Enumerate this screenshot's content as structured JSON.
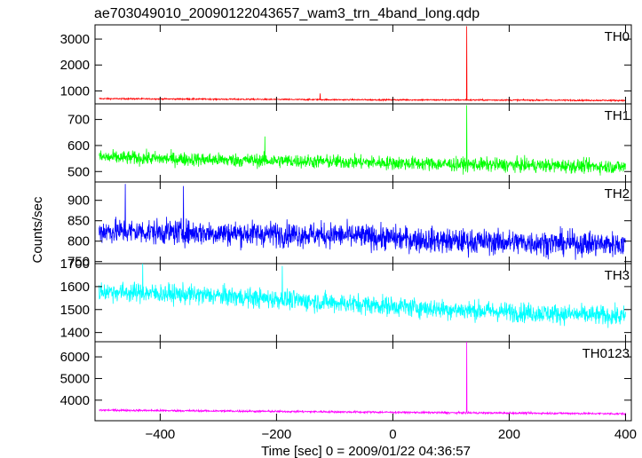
{
  "title": "ae703049010_20090122043657_wam3_trn_4band_long.qdp",
  "xlabel": "Time [sec] 0 = 2009/01/22 04:36:57",
  "ylabel": "Counts/sec",
  "chart_data": {
    "type": "line",
    "x_range": [
      -512,
      410
    ],
    "x_ticks": [
      -400,
      -200,
      0,
      200,
      400
    ],
    "x_tick_labels": [
      "−400",
      "−200",
      "0",
      "200",
      "400"
    ],
    "panels": [
      {
        "name": "TH0",
        "color": "#ff0000",
        "ylim": [
          500,
          3550
        ],
        "yticks": [
          1000,
          2000,
          3000
        ],
        "ytick_labels": [
          "1000",
          "2000",
          "3000"
        ],
        "baseline": [
          [
            -505,
            700
          ],
          [
            -300,
            680
          ],
          [
            -100,
            660
          ],
          [
            100,
            650
          ],
          [
            300,
            640
          ],
          [
            400,
            630
          ]
        ],
        "noise": 25,
        "spikes": [
          [
            -125,
            900
          ],
          [
            127,
            3500
          ]
        ]
      },
      {
        "name": "TH1",
        "color": "#00ff00",
        "ylim": [
          460,
          760
        ],
        "yticks": [
          500,
          600,
          700
        ],
        "ytick_labels": [
          "500",
          "600",
          "700"
        ],
        "baseline": [
          [
            -505,
            555
          ],
          [
            -300,
            545
          ],
          [
            -100,
            538
          ],
          [
            100,
            528
          ],
          [
            300,
            522
          ],
          [
            400,
            518
          ]
        ],
        "noise": 26,
        "spikes": [
          [
            -220,
            635
          ],
          [
            127,
            755
          ]
        ]
      },
      {
        "name": "TH2",
        "color": "#0000ff",
        "ylim": [
          745,
          945
        ],
        "yticks": [
          750,
          800,
          850,
          900
        ],
        "ytick_labels": [
          "750",
          "800",
          "850",
          "900"
        ],
        "baseline": [
          [
            -505,
            825
          ],
          [
            -300,
            820
          ],
          [
            -100,
            815
          ],
          [
            100,
            800
          ],
          [
            300,
            795
          ],
          [
            400,
            792
          ]
        ],
        "noise": 30,
        "spikes": [
          [
            -460,
            940
          ],
          [
            -360,
            935
          ]
        ]
      },
      {
        "name": "TH3",
        "color": "#00ffff",
        "ylim": [
          1360,
          1700
        ],
        "yticks": [
          1400,
          1500,
          1600,
          1700
        ],
        "ytick_labels": [
          "1400",
          "1500",
          "1600",
          "1700"
        ],
        "baseline": [
          [
            -505,
            1580
          ],
          [
            -300,
            1560
          ],
          [
            -100,
            1530
          ],
          [
            100,
            1500
          ],
          [
            300,
            1480
          ],
          [
            400,
            1470
          ]
        ],
        "noise": 42,
        "spikes": [
          [
            -430,
            1700
          ],
          [
            -190,
            1690
          ]
        ]
      },
      {
        "name": "TH0123",
        "color": "#ff00ff",
        "ylim": [
          3050,
          6700
        ],
        "yticks": [
          4000,
          5000,
          6000
        ],
        "ytick_labels": [
          "4000",
          "5000",
          "6000"
        ],
        "baseline": [
          [
            -505,
            3540
          ],
          [
            -300,
            3500
          ],
          [
            -100,
            3460
          ],
          [
            100,
            3420
          ],
          [
            300,
            3390
          ],
          [
            400,
            3370
          ]
        ],
        "noise": 45,
        "spikes": [
          [
            127,
            6700
          ]
        ]
      }
    ]
  }
}
